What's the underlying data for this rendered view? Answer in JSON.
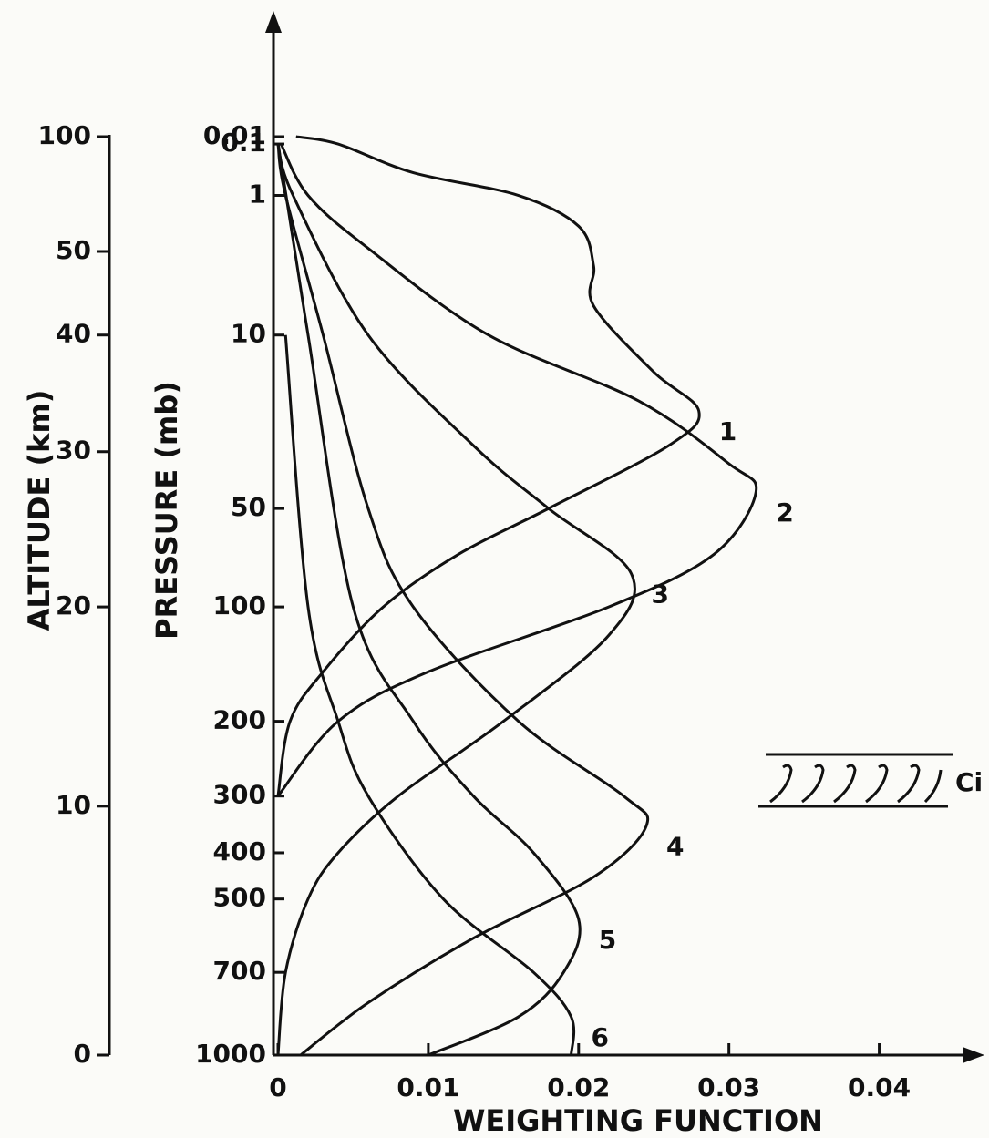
{
  "chart_data": {
    "type": "line",
    "x_label": "WEIGHTING FUNCTION",
    "y_label": "PRESSURE (mb)",
    "y2_label": "ALTITUDE (km)",
    "xlim": [
      0,
      0.047
    ],
    "xticks": [
      0,
      0.01,
      0.02,
      0.03,
      0.04
    ],
    "ylim": [
      1000,
      0.01
    ],
    "yscale": "log",
    "yticks": [
      0.01,
      0.1,
      1,
      10,
      50,
      100,
      200,
      300,
      400,
      500,
      700,
      1000
    ],
    "y2lim": [
      0,
      100
    ],
    "y2ticks": [
      0,
      10,
      20,
      30,
      40,
      50,
      100
    ],
    "annotations": [
      "Ci"
    ],
    "series": [
      {
        "name": "1",
        "color": "#111111",
        "pressure": [
          0.01,
          0.1,
          0.5,
          1,
          2,
          4,
          7,
          15,
          22,
          30,
          50,
          70,
          100,
          150,
          200,
          300
        ],
        "values": [
          0.0012,
          0.004,
          0.009,
          0.016,
          0.02,
          0.021,
          0.021,
          0.025,
          0.028,
          0.026,
          0.018,
          0.012,
          0.007,
          0.003,
          0.0008,
          0
        ]
      },
      {
        "name": "2",
        "color": "#111111",
        "pressure": [
          0.1,
          1,
          3,
          10,
          20,
          35,
          44,
          70,
          100,
          150,
          200,
          300
        ],
        "values": [
          0.0002,
          0.002,
          0.006,
          0.014,
          0.024,
          0.03,
          0.0318,
          0.029,
          0.022,
          0.01,
          0.004,
          0
        ]
      },
      {
        "name": "3",
        "color": "#111111",
        "pressure": [
          0.1,
          1,
          10,
          30,
          50,
          80,
          120,
          200,
          300,
          400,
          500,
          700,
          1000
        ],
        "values": [
          0,
          0.001,
          0.006,
          0.013,
          0.018,
          0.0235,
          0.022,
          0.015,
          0.008,
          0.004,
          0.002,
          0.0005,
          0
        ]
      },
      {
        "name": "4",
        "color": "#111111",
        "pressure": [
          0.1,
          1,
          10,
          50,
          100,
          200,
          300,
          350,
          450,
          600,
          800,
          1000
        ],
        "values": [
          0,
          0.0005,
          0.003,
          0.006,
          0.009,
          0.016,
          0.023,
          0.0245,
          0.021,
          0.013,
          0.006,
          0.0015
        ]
      },
      {
        "name": "5",
        "color": "#111111",
        "pressure": [
          0.1,
          10,
          100,
          200,
          300,
          400,
          550,
          700,
          850,
          1000
        ],
        "values": [
          0,
          0.002,
          0.005,
          0.009,
          0.013,
          0.017,
          0.02,
          0.019,
          0.016,
          0.01
        ]
      },
      {
        "name": "6",
        "color": "#111111",
        "pressure": [
          10,
          100,
          200,
          300,
          500,
          700,
          850,
          1000
        ],
        "values": [
          0.0005,
          0.002,
          0.004,
          0.006,
          0.011,
          0.017,
          0.0195,
          0.0195
        ]
      }
    ]
  }
}
